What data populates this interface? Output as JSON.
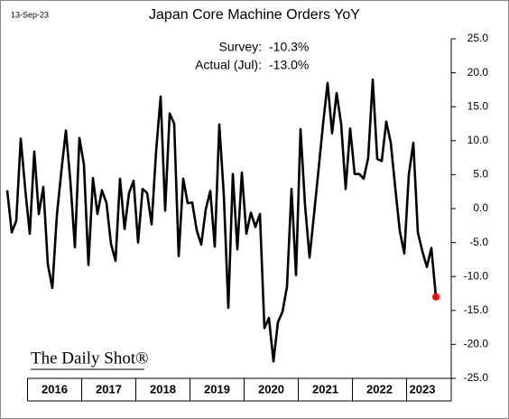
{
  "chart_data": {
    "type": "line",
    "title": "Japan Core Machine Orders YoY",
    "date": "13-Sep-23",
    "annotations": [
      {
        "label": "Survey:",
        "value": "-10.3%"
      },
      {
        "label": "Actual (Jul):",
        "value": "-13.0%"
      }
    ],
    "source": "The Daily Shot®",
    "categories": [
      null,
      null,
      null,
      null,
      null,
      null,
      null,
      null,
      null,
      null,
      null,
      "2016",
      null,
      null,
      null,
      null,
      null,
      null,
      null,
      null,
      null,
      null,
      null,
      "2017",
      null,
      null,
      null,
      null,
      null,
      null,
      null,
      null,
      null,
      null,
      null,
      "2018",
      null,
      null,
      null,
      null,
      null,
      null,
      null,
      null,
      null,
      null,
      null,
      "2019",
      null,
      null,
      null,
      null,
      null,
      null,
      null,
      null,
      null,
      null,
      null,
      "2020",
      null,
      null,
      null,
      null,
      null,
      null,
      null,
      null,
      null,
      null,
      null,
      "2021",
      null,
      null,
      null,
      null,
      null,
      null,
      null,
      null,
      null,
      null,
      null,
      "2022",
      null,
      null,
      null,
      null,
      null,
      null,
      null,
      null,
      "2023",
      null,
      null,
      null
    ],
    "series": [
      {
        "color": "#000000",
        "highlight_color": "#ff0000",
        "values": [
          2.7,
          -3.5,
          -1.8,
          10.3,
          2.8,
          -3.7,
          8.4,
          -0.8,
          3.2,
          -8.2,
          -11.7,
          -1,
          5.5,
          11.5,
          4.0,
          -5.7,
          10.4,
          6.5,
          -8.3,
          4.5,
          -0.8,
          2.7,
          0.8,
          -5.2,
          -7.7,
          4.4,
          -3,
          2.3,
          4.1,
          -5,
          2.9,
          2.3,
          -2.3,
          8.5,
          16.5,
          -0.3,
          14,
          12.5,
          -7,
          4.4,
          0.8,
          0.9,
          -3.2,
          -5.3,
          -0.1,
          2.6,
          -5.6,
          12.4,
          2.0,
          -14.6,
          5.1,
          -6,
          5.3,
          -3.7,
          -0.6,
          -2.7,
          -0.8,
          -17.6,
          -16.1,
          -22.5,
          -16.7,
          -15.2,
          -11.5,
          2.9,
          -9.8,
          11.7,
          0.5,
          -7.2,
          -0.8,
          5.8,
          12.5,
          18.5,
          11.1,
          17.0,
          12.5,
          2.9,
          11.8,
          5.1,
          5.1,
          4.4,
          7.5,
          19,
          7.3,
          7.0,
          12.8,
          9.7,
          3.0,
          -3.3,
          -6.6,
          5.0,
          9.7,
          -3.5,
          -6.3,
          -8.6,
          -5.8,
          -13.0
        ]
      }
    ],
    "ylim": [
      -25,
      25
    ],
    "yticks": [
      {
        "value": -25,
        "label": "-25.0"
      },
      {
        "value": -20,
        "label": "-20.0"
      },
      {
        "value": -15,
        "label": "-15.0"
      },
      {
        "value": -10,
        "label": "-10.0"
      },
      {
        "value": -5,
        "label": "-5.0"
      },
      {
        "value": 0,
        "label": "0.0"
      },
      {
        "value": 5,
        "label": "5.0"
      },
      {
        "value": 10,
        "label": "10.0"
      },
      {
        "value": 15,
        "label": "15.0"
      },
      {
        "value": 20,
        "label": "20.0"
      },
      {
        "value": 25,
        "label": "25.0"
      }
    ]
  }
}
